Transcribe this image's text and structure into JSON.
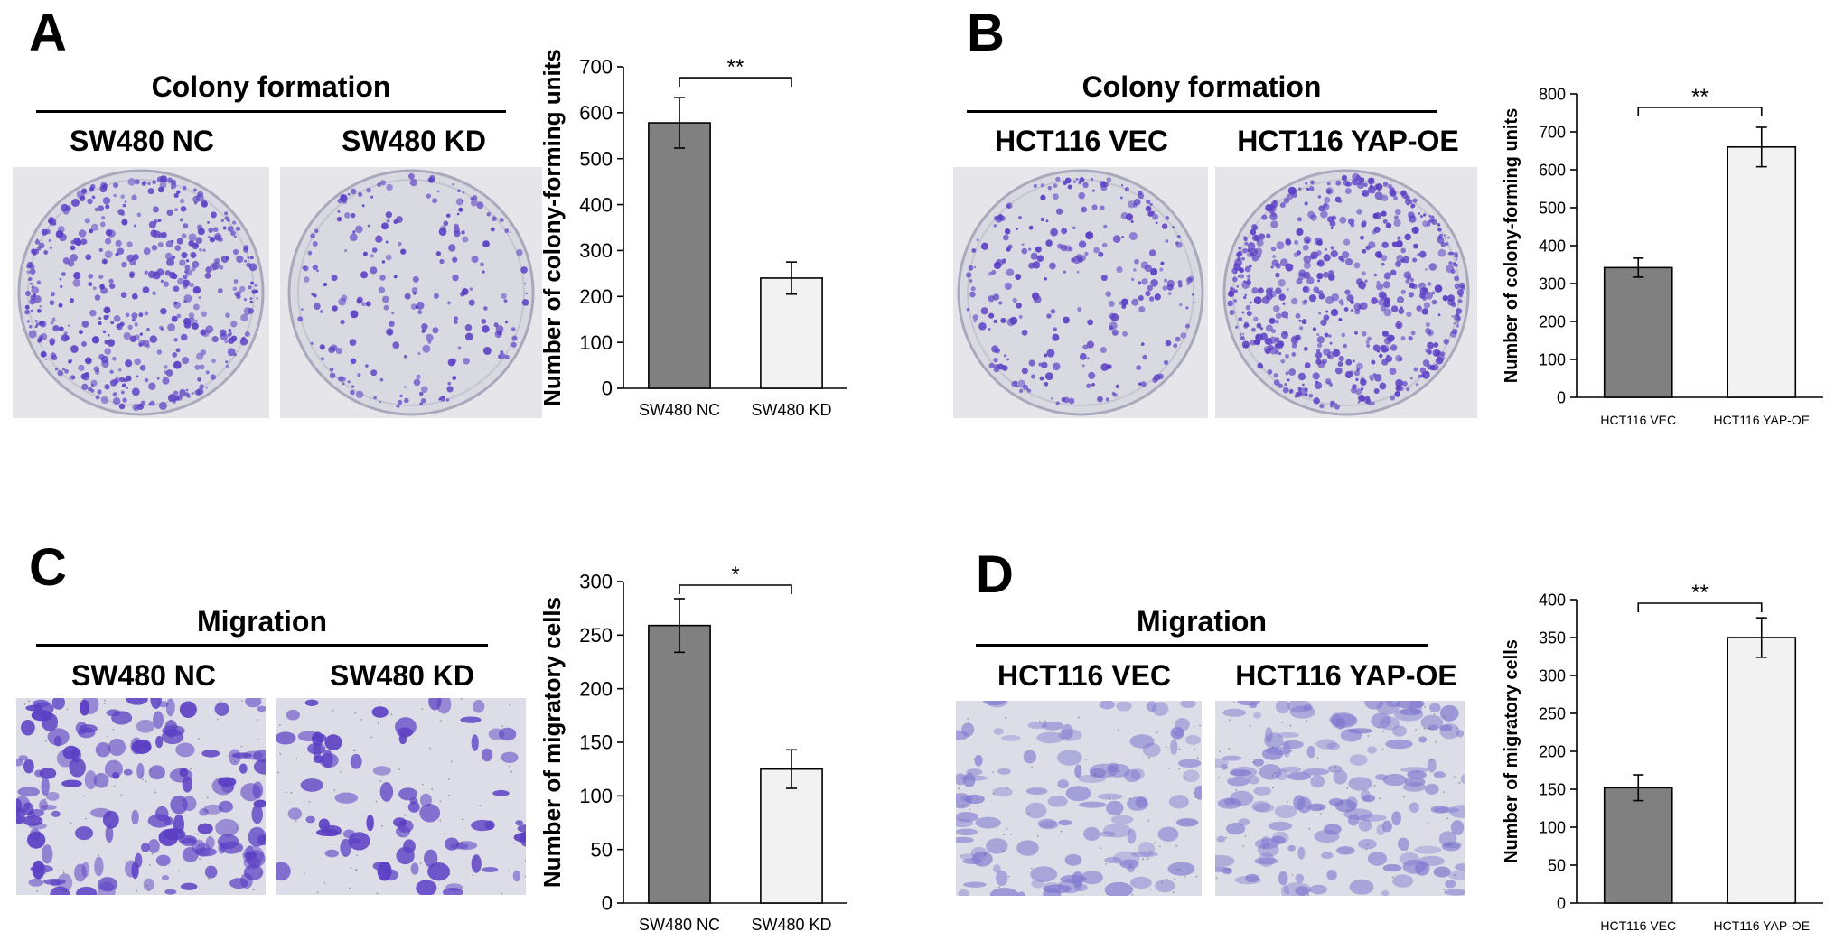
{
  "panels": [
    {
      "letter": "A",
      "section_title": "Colony formation",
      "conditions": [
        "SW480 NC",
        "SW480 KD"
      ],
      "image_kind": "colony",
      "chart_data": {
        "type": "bar",
        "categories": [
          "SW480 NC",
          "SW480 KD"
        ],
        "values": [
          578,
          240
        ],
        "errors": [
          55,
          35
        ],
        "bar_colors": [
          "#808080",
          "#f2f2f2"
        ],
        "title": "",
        "xlabel": "",
        "ylabel": "Number of colony-forming units",
        "ylim": [
          0,
          700
        ],
        "yticks": [
          0,
          100,
          200,
          300,
          400,
          500,
          600,
          700
        ],
        "significance": "**",
        "grid": false
      }
    },
    {
      "letter": "B",
      "section_title": "Colony formation",
      "conditions": [
        "HCT116 VEC",
        "HCT116 YAP-OE"
      ],
      "image_kind": "colony",
      "chart_data": {
        "type": "bar",
        "categories": [
          "HCT116 VEC",
          "HCT116 YAP-OE"
        ],
        "values": [
          342,
          660
        ],
        "errors": [
          25,
          52
        ],
        "bar_colors": [
          "#808080",
          "#f2f2f2"
        ],
        "title": "",
        "xlabel": "",
        "ylabel": "Number of colony-forming units",
        "ylim": [
          0,
          800
        ],
        "yticks": [
          0,
          100,
          200,
          300,
          400,
          500,
          600,
          700,
          800
        ],
        "significance": "**",
        "grid": false
      }
    },
    {
      "letter": "C",
      "section_title": "Migration",
      "conditions": [
        "SW480 NC",
        "SW480 KD"
      ],
      "image_kind": "migration",
      "chart_data": {
        "type": "bar",
        "categories": [
          "SW480 NC",
          "SW480 KD"
        ],
        "values": [
          259,
          125
        ],
        "errors": [
          25,
          18
        ],
        "bar_colors": [
          "#808080",
          "#f2f2f2"
        ],
        "title": "",
        "xlabel": "",
        "ylabel": "Number of migratory cells",
        "ylim": [
          0,
          300
        ],
        "yticks": [
          0,
          50,
          100,
          150,
          200,
          250,
          300
        ],
        "significance": "*",
        "grid": false
      }
    },
    {
      "letter": "D",
      "section_title": "Migration",
      "conditions": [
        "HCT116 VEC",
        "HCT116 YAP-OE"
      ],
      "image_kind": "migration",
      "chart_data": {
        "type": "bar",
        "categories": [
          "HCT116 VEC",
          "HCT116 YAP-OE"
        ],
        "values": [
          152,
          350
        ],
        "errors": [
          17,
          26
        ],
        "bar_colors": [
          "#808080",
          "#f2f2f2"
        ],
        "title": "",
        "xlabel": "",
        "ylabel": "Number of migratory cells",
        "ylim": [
          0,
          400
        ],
        "yticks": [
          0,
          50,
          100,
          150,
          200,
          250,
          300,
          350,
          400
        ],
        "significance": "**",
        "grid": false
      }
    }
  ],
  "colors": {
    "stain": "#5b3fc4",
    "plate_bg": "#d9d9e2",
    "migration_bg": "#dcdde6"
  }
}
